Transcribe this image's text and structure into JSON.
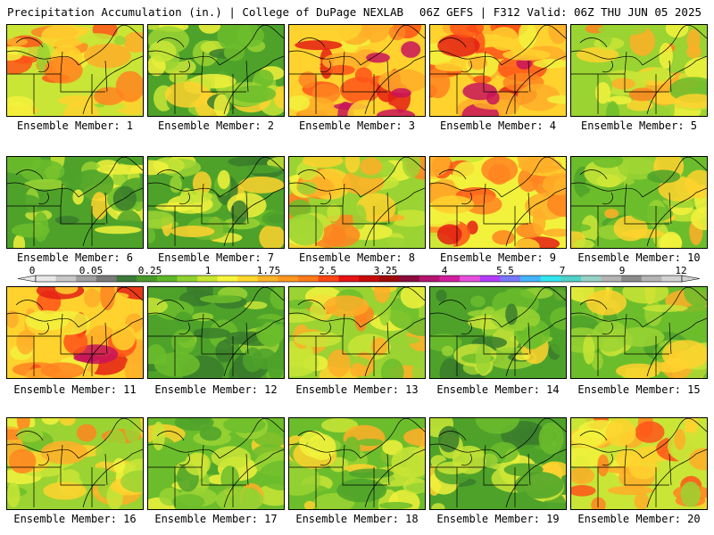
{
  "header": {
    "left": "Precipitation Accumulation (in.) | College of DuPage NEXLAB",
    "right": "06Z GEFS | F312 Valid: 06Z THU JUN 05 2025"
  },
  "panels": [
    {
      "caption": "Ensemble Member: 1"
    },
    {
      "caption": "Ensemble Member: 2"
    },
    {
      "caption": "Ensemble Member: 3"
    },
    {
      "caption": "Ensemble Member: 4"
    },
    {
      "caption": "Ensemble Member: 5"
    },
    {
      "caption": "Ensemble Member: 6"
    },
    {
      "caption": "Ensemble Member: 7"
    },
    {
      "caption": "Ensemble Member: 8"
    },
    {
      "caption": "Ensemble Member: 9"
    },
    {
      "caption": "Ensemble Member: 10"
    },
    {
      "caption": "Ensemble Member: 11"
    },
    {
      "caption": "Ensemble Member: 12"
    },
    {
      "caption": "Ensemble Member: 13"
    },
    {
      "caption": "Ensemble Member: 14"
    },
    {
      "caption": "Ensemble Member: 15"
    },
    {
      "caption": "Ensemble Member: 16"
    },
    {
      "caption": "Ensemble Member: 17"
    },
    {
      "caption": "Ensemble Member: 18"
    },
    {
      "caption": "Ensemble Member: 19"
    },
    {
      "caption": "Ensemble Member: 20"
    }
  ],
  "colorbar": {
    "labels": [
      "0",
      "0.05",
      "0.25",
      "1",
      "1.75",
      "2.5",
      "3.25",
      "4",
      "5.5",
      "7",
      "9",
      "12"
    ],
    "colors": [
      "#e8e8e8",
      "#c8c8c8",
      "#a0a0a0",
      "#7a7a7a",
      "#3c7a3c",
      "#4a9a2a",
      "#5db82a",
      "#8fd22f",
      "#c8e632",
      "#f5f53c",
      "#ffd72d",
      "#ffb428",
      "#ff9620",
      "#ff7a1a",
      "#ff4614",
      "#e61414",
      "#c80a0a",
      "#a00a0a",
      "#8c0a3c",
      "#b4146e",
      "#d21e9e",
      "#e650dc",
      "#b43cff",
      "#7878ff",
      "#46b4ff",
      "#32e6f0",
      "#50d2c8",
      "#96d2c8",
      "#b4b4b4",
      "#8c8c8c",
      "#b4b4b4",
      "#d2d2d2"
    ]
  }
}
